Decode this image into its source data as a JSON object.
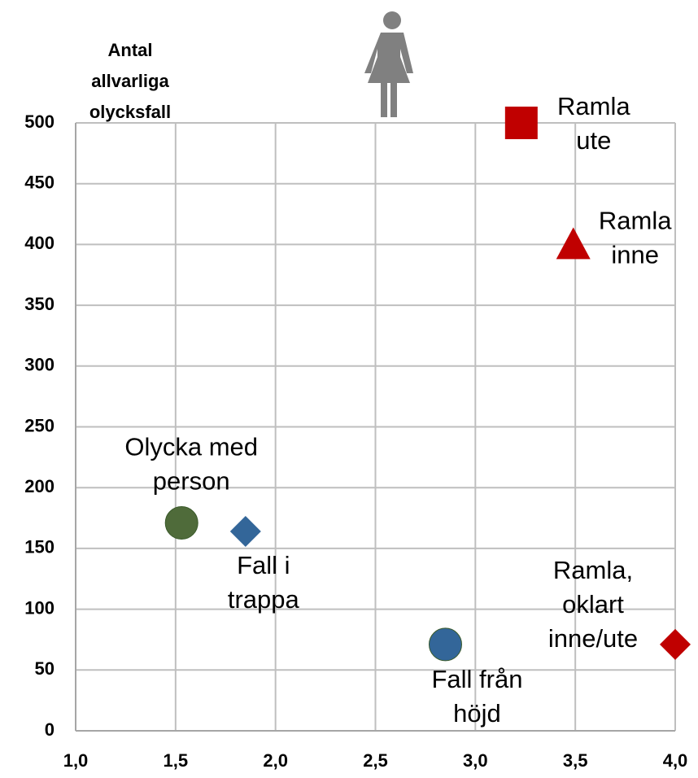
{
  "chart_data": {
    "type": "scatter",
    "ylabel": [
      "Antal",
      "allvarliga",
      "olycksfall"
    ],
    "xlim": [
      1,
      4
    ],
    "xticks": [
      {
        "value": 1,
        "label": "1,0"
      },
      {
        "value": 1.5,
        "label": "1,5"
      },
      {
        "value": 2,
        "label": "2,0"
      },
      {
        "value": 2.5,
        "label": "2,5"
      },
      {
        "value": 3,
        "label": "3,0"
      },
      {
        "value": 3.5,
        "label": "3,5"
      },
      {
        "value": 4,
        "label": "4,0"
      }
    ],
    "ylim": [
      0,
      500
    ],
    "yticks": [
      0,
      50,
      100,
      150,
      200,
      250,
      300,
      350,
      400,
      450,
      500
    ],
    "grid": true,
    "points": [
      {
        "label": [
          "Ramla",
          "ute"
        ],
        "x": 3.23,
        "y": 500,
        "marker": "square",
        "color": "#c00000"
      },
      {
        "label": [
          "Ramla",
          "inne"
        ],
        "x": 3.49,
        "y": 400,
        "marker": "triangle",
        "color": "#c00000"
      },
      {
        "label": [
          "Olycka med",
          "person"
        ],
        "x": 1.53,
        "y": 171,
        "marker": "circle",
        "color": "#4f6b3a"
      },
      {
        "label": [
          "Fall i",
          "trappa"
        ],
        "x": 1.85,
        "y": 164,
        "marker": "diamond",
        "color": "#336699"
      },
      {
        "label": [
          "Fall från",
          "höjd"
        ],
        "x": 2.85,
        "y": 71,
        "marker": "circle",
        "color": "#336699"
      },
      {
        "label": [
          "Ramla,",
          "oklart",
          "inne/ute"
        ],
        "x": 4.0,
        "y": 71,
        "marker": "diamond",
        "color": "#c00000"
      }
    ]
  }
}
